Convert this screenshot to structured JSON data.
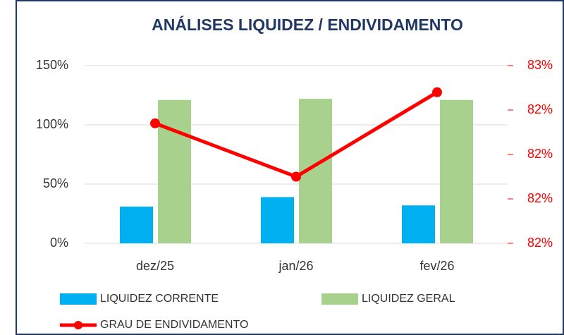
{
  "chart_data": {
    "type": "bar",
    "title": "ANÁLISES LIQUIDEZ / ENDIVIDAMENTO",
    "categories": [
      "dez/25",
      "jan/26",
      "fev/26"
    ],
    "series": [
      {
        "name": "LIQUIDEZ CORRENTE",
        "color": "#00b0f0",
        "type": "bar",
        "values": [
          31,
          39,
          32
        ]
      },
      {
        "name": "LIQUIDEZ GERAL",
        "color": "#a9d18e",
        "type": "bar",
        "values": [
          121,
          122,
          121
        ]
      },
      {
        "name": "GRAU DE ENDIVIDAMENTO",
        "color": "#ff0000",
        "type": "line",
        "axis": "y2",
        "values": [
          82.37,
          82.25,
          82.44
        ]
      }
    ],
    "ylim": [
      0,
      150
    ],
    "yticks": [
      {
        "value": 0,
        "label": "0%"
      },
      {
        "value": 50,
        "label": "50%"
      },
      {
        "value": 100,
        "label": "100%"
      },
      {
        "value": 150,
        "label": "150%"
      }
    ],
    "y2lim": [
      82.1,
      82.5
    ],
    "y2ticks": [
      {
        "value": 82.1,
        "label": "82%"
      },
      {
        "value": 82.2,
        "label": "82%"
      },
      {
        "value": 82.3,
        "label": "82%"
      },
      {
        "value": 82.4,
        "label": "82%"
      },
      {
        "value": 82.5,
        "label": "83%"
      }
    ],
    "grid": true,
    "legend": "bottom"
  }
}
